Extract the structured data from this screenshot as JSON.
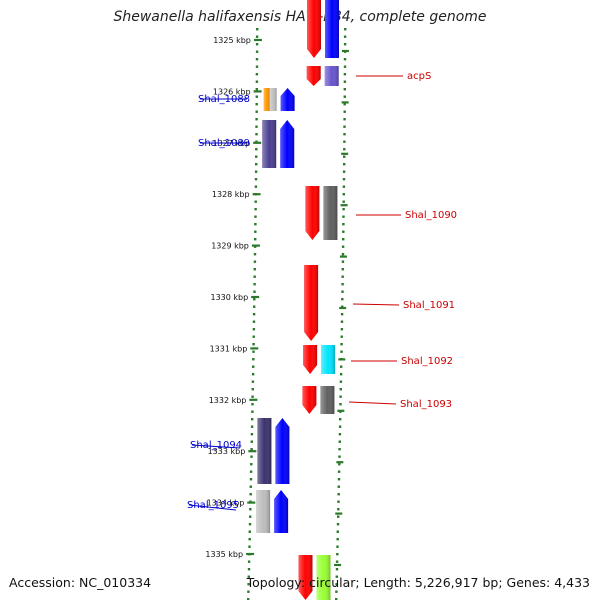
{
  "title": "Shewanella halifaxensis HAW-EB4, complete genome",
  "accession": "Accession: NC_010334",
  "topology": "Topology: circular; Length: 5,226,917 bp; Genes: 4,433",
  "colors": {
    "backbone": "#808080",
    "tick": "#2a7a2a",
    "forward_label": "#0000cc",
    "reverse_label": "#cc0000"
  },
  "ticks": [
    {
      "label": "1325 kbp"
    },
    {
      "label": "1326 kbp"
    },
    {
      "label": "1327 kbp"
    },
    {
      "label": "1328 kbp"
    },
    {
      "label": "1329 kbp"
    },
    {
      "label": "1330 kbp"
    },
    {
      "label": "1331 kbp"
    },
    {
      "label": "1332 kbp"
    },
    {
      "label": "1333 kbp"
    },
    {
      "label": "1334 kbp"
    },
    {
      "label": "1335 kbp"
    }
  ],
  "genes": [
    {
      "name": "Shal_1088",
      "strand": "forward",
      "labeled": true,
      "color": "#0000ff",
      "cog_color": "#ff9900",
      "cog_color2": "#c0c0c0"
    },
    {
      "name": "Shal_1089",
      "strand": "forward",
      "labeled": true,
      "color": "#0000ff",
      "cog_color": "#4b3f8f"
    },
    {
      "name": "Shal_1094",
      "strand": "forward",
      "labeled": true,
      "color": "#0000ff",
      "cog_color": "#3b336f"
    },
    {
      "name": "Shal_1095",
      "strand": "forward",
      "labeled": true,
      "color": "#0000ff",
      "cog_color": "#bdbdbd"
    },
    {
      "name": "acpS",
      "strand": "reverse",
      "labeled": true,
      "color": "#ff0000",
      "cog_color": "#6655cc"
    },
    {
      "name": "Shal_1090",
      "strand": "reverse",
      "labeled": true,
      "color": "#ff0000",
      "cog_color": "#606060"
    },
    {
      "name": "Shal_1091",
      "strand": "reverse",
      "labeled": true,
      "color": "#ff0000",
      "cog_color": ""
    },
    {
      "name": "Shal_1092",
      "strand": "reverse",
      "labeled": true,
      "color": "#ff0000",
      "cog_color": "#00e5ff"
    },
    {
      "name": "Shal_1093",
      "strand": "reverse",
      "labeled": true,
      "color": "#ff0000",
      "cog_color": "#606060"
    },
    {
      "name": "",
      "strand": "reverse",
      "labeled": false,
      "color": "#ff0000",
      "cog_color": "#0000ff"
    },
    {
      "name": "",
      "strand": "reverse",
      "labeled": false,
      "color": "#ff0000",
      "cog_color": "#99ff33"
    }
  ]
}
